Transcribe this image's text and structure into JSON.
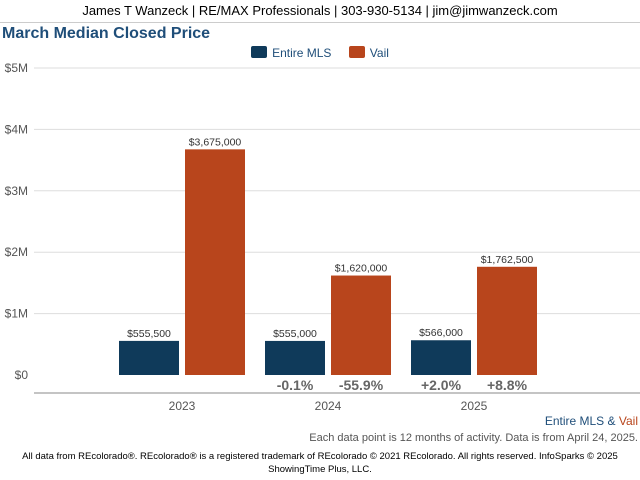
{
  "header": {
    "agent_line": "James T Wanzeck | RE/MAX Professionals | 303-930-5134 | jim@jimwanzeck.com"
  },
  "chart_data": {
    "type": "bar",
    "title": "March Median Closed Price",
    "categories": [
      "2023",
      "2024",
      "2025"
    ],
    "series": [
      {
        "name": "Entire MLS",
        "color": "#0f3a5a",
        "values": [
          555500,
          555000,
          566000
        ],
        "labels": [
          "$555,500",
          "$555,000",
          "$566,000"
        ]
      },
      {
        "name": "Vail",
        "color": "#b8451c",
        "values": [
          3675000,
          1620000,
          1762500
        ],
        "labels": [
          "$3,675,000",
          "$1,620,000",
          "$1,762,500"
        ]
      }
    ],
    "yticks": [
      "$0",
      "$1M",
      "$2M",
      "$3M",
      "$4M",
      "$5M"
    ],
    "ylim": [
      0,
      5000000
    ],
    "grid": true,
    "legend_position": "top-center",
    "change_labels": [
      {
        "category": "2024",
        "mls": "-0.1%",
        "vail": "-55.9%"
      },
      {
        "category": "2025",
        "mls": "+2.0%",
        "vail": "+8.8%"
      }
    ]
  },
  "footer_legend": {
    "mls": "Entire MLS",
    "amp": "&",
    "vail": "Vail"
  },
  "footnote": "Each data point is 12 months of activity. Data is from April 24, 2025.",
  "footer": {
    "line1": "All data from REcolorado®. REcolorado® is a registered trademark of REcolorado © 2021 REcolorado. All rights reserved. InfoSparks © 2025",
    "line2": "ShowingTime Plus, LLC."
  }
}
